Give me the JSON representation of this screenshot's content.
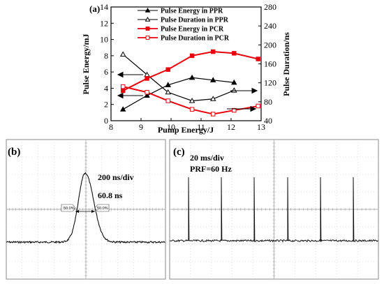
{
  "chart_data": [
    {
      "panel": "(a)",
      "type": "line",
      "xlabel": "Pump Energy/J",
      "ylabel_left": "Pulse Energy/mJ",
      "ylabel_right": "Pulse Duration/ns",
      "xlim": [
        8,
        13
      ],
      "ylim_left": [
        0,
        14
      ],
      "ylim_right": [
        40,
        280
      ],
      "xticks": [
        "8",
        "9",
        "10",
        "11",
        "12",
        "13"
      ],
      "yticks_left": [
        "0",
        "2",
        "4",
        "6",
        "8",
        "10",
        "12",
        "14"
      ],
      "yticks_right": [
        "40",
        "80",
        "120",
        "160",
        "200",
        "240",
        "280"
      ],
      "legend_position": "top",
      "series": [
        {
          "name": "Pulse Energy in PPR",
          "axis": "left",
          "color": "#000000",
          "marker": "filled-triangle",
          "x": [
            8.4,
            9.2,
            9.9,
            10.7,
            11.4,
            12.1
          ],
          "y": [
            1.4,
            3.1,
            4.4,
            5.3,
            5.0,
            4.7
          ]
        },
        {
          "name": "Pulse Duration in PPR",
          "axis": "right",
          "color": "#000000",
          "marker": "open-triangle",
          "x": [
            8.4,
            9.2,
            9.9,
            10.7,
            11.4,
            12.1
          ],
          "y": [
            180,
            137,
            100,
            82,
            86,
            104
          ]
        },
        {
          "name": "Pulse Energy in PCR",
          "axis": "left",
          "color": "#e8000b",
          "marker": "filled-square",
          "x": [
            8.4,
            9.2,
            9.9,
            10.7,
            11.4,
            12.1,
            12.9
          ],
          "y": [
            3.7,
            5.2,
            6.3,
            8.0,
            8.5,
            8.3,
            7.6
          ]
        },
        {
          "name": "Pulse Duration in PCR",
          "axis": "right",
          "color": "#e8000b",
          "marker": "open-square",
          "x": [
            8.4,
            9.2,
            9.9,
            10.7,
            11.4,
            12.1,
            12.9
          ],
          "y": [
            112,
            100,
            82,
            64,
            54,
            62,
            71
          ]
        }
      ]
    },
    {
      "panel": "(b)",
      "type": "line",
      "annotation_timebase": "200 ns/div",
      "annotation_width": "60.8 ns",
      "cursor_labels": [
        "50.0%",
        "50.0%"
      ]
    },
    {
      "panel": "(c)",
      "type": "line",
      "annotation_timebase": "20 ms/div",
      "annotation_prf": "PRF=60 Hz"
    }
  ]
}
